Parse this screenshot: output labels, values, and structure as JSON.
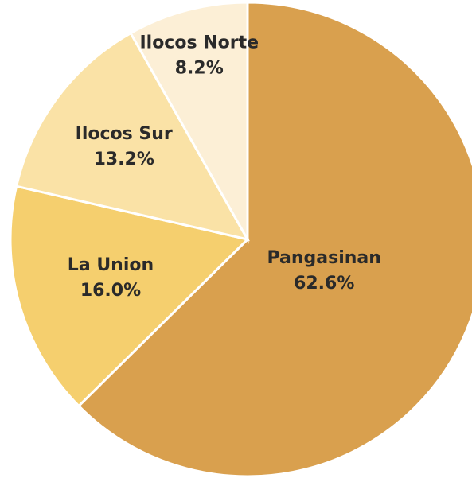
{
  "chart_data": {
    "type": "pie",
    "categories": [
      "Pangasinan",
      "La Union",
      "Ilocos Sur",
      "Ilocos Norte"
    ],
    "values": [
      62.6,
      16.0,
      13.2,
      8.2
    ],
    "value_labels": [
      "62.6%",
      "16.0%",
      "13.2%",
      "8.2%"
    ],
    "colors": [
      "#d9a04e",
      "#f5cf6e",
      "#fae2a6",
      "#fcefd6"
    ]
  }
}
